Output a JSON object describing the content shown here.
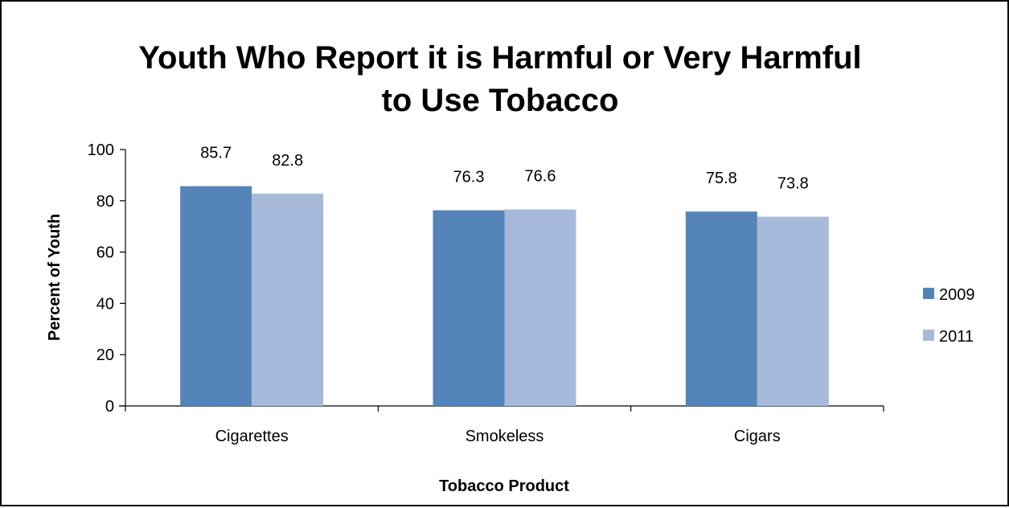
{
  "chart_data": {
    "type": "bar",
    "title_lines": [
      "Youth Who Report it is Harmful or Very Harmful",
      "to Use Tobacco"
    ],
    "xlabel": "Tobacco Product",
    "ylabel": "Percent of Youth",
    "categories": [
      "Cigarettes",
      "Smokeless",
      "Cigars"
    ],
    "series": [
      {
        "name": "2009",
        "values": [
          85.7,
          76.3,
          75.8
        ],
        "color": "#5585b8"
      },
      {
        "name": "2011",
        "values": [
          82.8,
          76.6,
          73.8
        ],
        "color": "#a7b9da"
      }
    ],
    "ylim": [
      0,
      100
    ],
    "yticks": [
      0,
      20,
      40,
      60,
      80,
      100
    ],
    "grid": false,
    "legend_position": "right"
  }
}
